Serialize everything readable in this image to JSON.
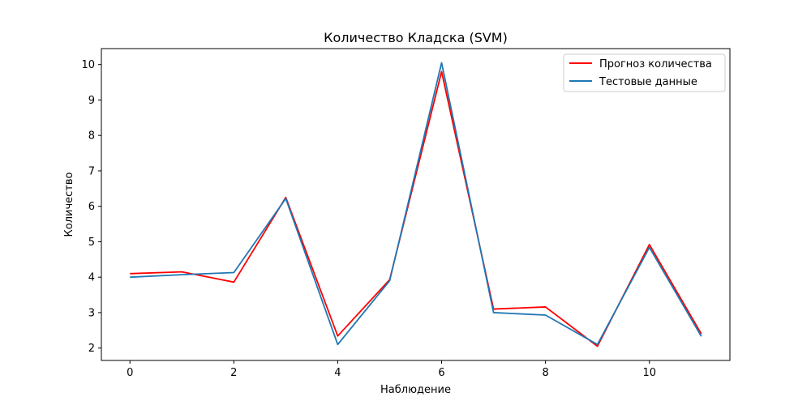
{
  "chart_data": {
    "type": "line",
    "title": "Количество Кладска (SVM)",
    "xlabel": "Наблюдение",
    "ylabel": "Количество",
    "x": [
      0,
      1,
      2,
      3,
      4,
      5,
      6,
      7,
      8,
      9,
      10,
      11
    ],
    "xlim": [
      -0.55,
      11.55
    ],
    "ylim": [
      1.65,
      10.45
    ],
    "xticks": [
      0,
      2,
      4,
      6,
      8,
      10
    ],
    "yticks": [
      2,
      3,
      4,
      5,
      6,
      7,
      8,
      9,
      10
    ],
    "grid": false,
    "legend_position": "top-right",
    "series": [
      {
        "name": "Прогноз количества",
        "color": "#ff0000",
        "values": [
          4.1,
          4.15,
          3.86,
          6.25,
          2.34,
          3.93,
          9.8,
          3.1,
          3.16,
          2.05,
          4.92,
          2.4
        ]
      },
      {
        "name": "Тестовые данные",
        "color": "#1f77b4",
        "values": [
          4.0,
          4.07,
          4.13,
          6.22,
          2.1,
          3.9,
          10.05,
          3.0,
          2.93,
          2.1,
          4.84,
          2.33
        ]
      }
    ]
  }
}
